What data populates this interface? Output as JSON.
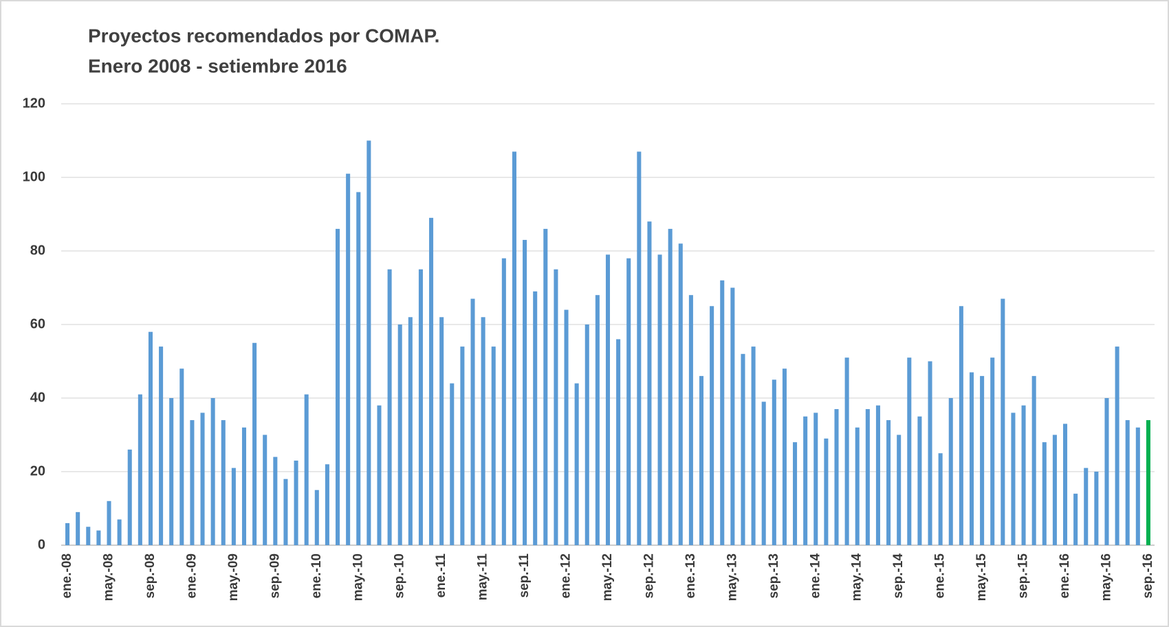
{
  "chart_data": {
    "type": "bar",
    "title": "Proyectos recomendados por COMAP.",
    "subtitle": "Enero 2008 - setiembre 2016",
    "categories": [
      "ene.-08",
      null,
      null,
      null,
      "may.-08",
      null,
      null,
      null,
      "sep.-08",
      null,
      null,
      null,
      "ene.-09",
      null,
      null,
      null,
      "may.-09",
      null,
      null,
      null,
      "sep.-09",
      null,
      null,
      null,
      "ene.-10",
      null,
      null,
      null,
      "may.-10",
      null,
      null,
      null,
      "sep.-10",
      null,
      null,
      null,
      "ene.-11",
      null,
      null,
      null,
      "may.-11",
      null,
      null,
      null,
      "sep.-11",
      null,
      null,
      null,
      "ene.-12",
      null,
      null,
      null,
      "may.-12",
      null,
      null,
      null,
      "sep.-12",
      null,
      null,
      null,
      "ene.-13",
      null,
      null,
      null,
      "may.-13",
      null,
      null,
      null,
      "sep.-13",
      null,
      null,
      null,
      "ene.-14",
      null,
      null,
      null,
      "may.-14",
      null,
      null,
      null,
      "sep.-14",
      null,
      null,
      null,
      "ene.-15",
      null,
      null,
      null,
      "may.-15",
      null,
      null,
      null,
      "sep.-15",
      null,
      null,
      null,
      "ene.-16",
      null,
      null,
      null,
      "may.-16",
      null,
      null,
      null,
      "sep.-16"
    ],
    "values": [
      6,
      9,
      5,
      4,
      12,
      7,
      26,
      41,
      58,
      54,
      40,
      48,
      34,
      36,
      40,
      34,
      21,
      32,
      55,
      30,
      24,
      18,
      23,
      41,
      15,
      22,
      86,
      101,
      96,
      110,
      38,
      75,
      60,
      62,
      75,
      89,
      62,
      44,
      54,
      67,
      62,
      54,
      78,
      107,
      83,
      69,
      86,
      75,
      64,
      44,
      60,
      68,
      79,
      56,
      78,
      107,
      88,
      79,
      86,
      82,
      68,
      46,
      65,
      72,
      70,
      52,
      54,
      39,
      45,
      48,
      28,
      35,
      36,
      29,
      37,
      51,
      32,
      37,
      38,
      34,
      30,
      51,
      35,
      50,
      25,
      40,
      65,
      47,
      46,
      51,
      67,
      36,
      38,
      46,
      28,
      30,
      33,
      14,
      21,
      20,
      40,
      54,
      34,
      32,
      34
    ],
    "colors": [
      "#5b9bd5",
      "#5b9bd5",
      "#5b9bd5",
      "#5b9bd5",
      "#5b9bd5",
      "#5b9bd5",
      "#5b9bd5",
      "#5b9bd5",
      "#5b9bd5",
      "#5b9bd5",
      "#5b9bd5",
      "#5b9bd5",
      "#5b9bd5",
      "#5b9bd5",
      "#5b9bd5",
      "#5b9bd5",
      "#5b9bd5",
      "#5b9bd5",
      "#5b9bd5",
      "#5b9bd5",
      "#5b9bd5",
      "#5b9bd5",
      "#5b9bd5",
      "#5b9bd5",
      "#5b9bd5",
      "#5b9bd5",
      "#5b9bd5",
      "#5b9bd5",
      "#5b9bd5",
      "#5b9bd5",
      "#5b9bd5",
      "#5b9bd5",
      "#5b9bd5",
      "#5b9bd5",
      "#5b9bd5",
      "#5b9bd5",
      "#5b9bd5",
      "#5b9bd5",
      "#5b9bd5",
      "#5b9bd5",
      "#5b9bd5",
      "#5b9bd5",
      "#5b9bd5",
      "#5b9bd5",
      "#5b9bd5",
      "#5b9bd5",
      "#5b9bd5",
      "#5b9bd5",
      "#5b9bd5",
      "#5b9bd5",
      "#5b9bd5",
      "#5b9bd5",
      "#5b9bd5",
      "#5b9bd5",
      "#5b9bd5",
      "#5b9bd5",
      "#5b9bd5",
      "#5b9bd5",
      "#5b9bd5",
      "#5b9bd5",
      "#5b9bd5",
      "#5b9bd5",
      "#5b9bd5",
      "#5b9bd5",
      "#5b9bd5",
      "#5b9bd5",
      "#5b9bd5",
      "#5b9bd5",
      "#5b9bd5",
      "#5b9bd5",
      "#5b9bd5",
      "#5b9bd5",
      "#5b9bd5",
      "#5b9bd5",
      "#5b9bd5",
      "#5b9bd5",
      "#5b9bd5",
      "#5b9bd5",
      "#5b9bd5",
      "#5b9bd5",
      "#5b9bd5",
      "#5b9bd5",
      "#5b9bd5",
      "#5b9bd5",
      "#5b9bd5",
      "#5b9bd5",
      "#5b9bd5",
      "#5b9bd5",
      "#5b9bd5",
      "#5b9bd5",
      "#5b9bd5",
      "#5b9bd5",
      "#5b9bd5",
      "#5b9bd5",
      "#5b9bd5",
      "#5b9bd5",
      "#5b9bd5",
      "#5b9bd5",
      "#5b9bd5",
      "#5b9bd5",
      "#5b9bd5",
      "#5b9bd5",
      "#5b9bd5",
      "#5b9bd5",
      "#00b050"
    ],
    "ylim": [
      0,
      120
    ],
    "yticks": [
      0,
      20,
      40,
      60,
      80,
      100,
      120
    ],
    "grid": true
  }
}
